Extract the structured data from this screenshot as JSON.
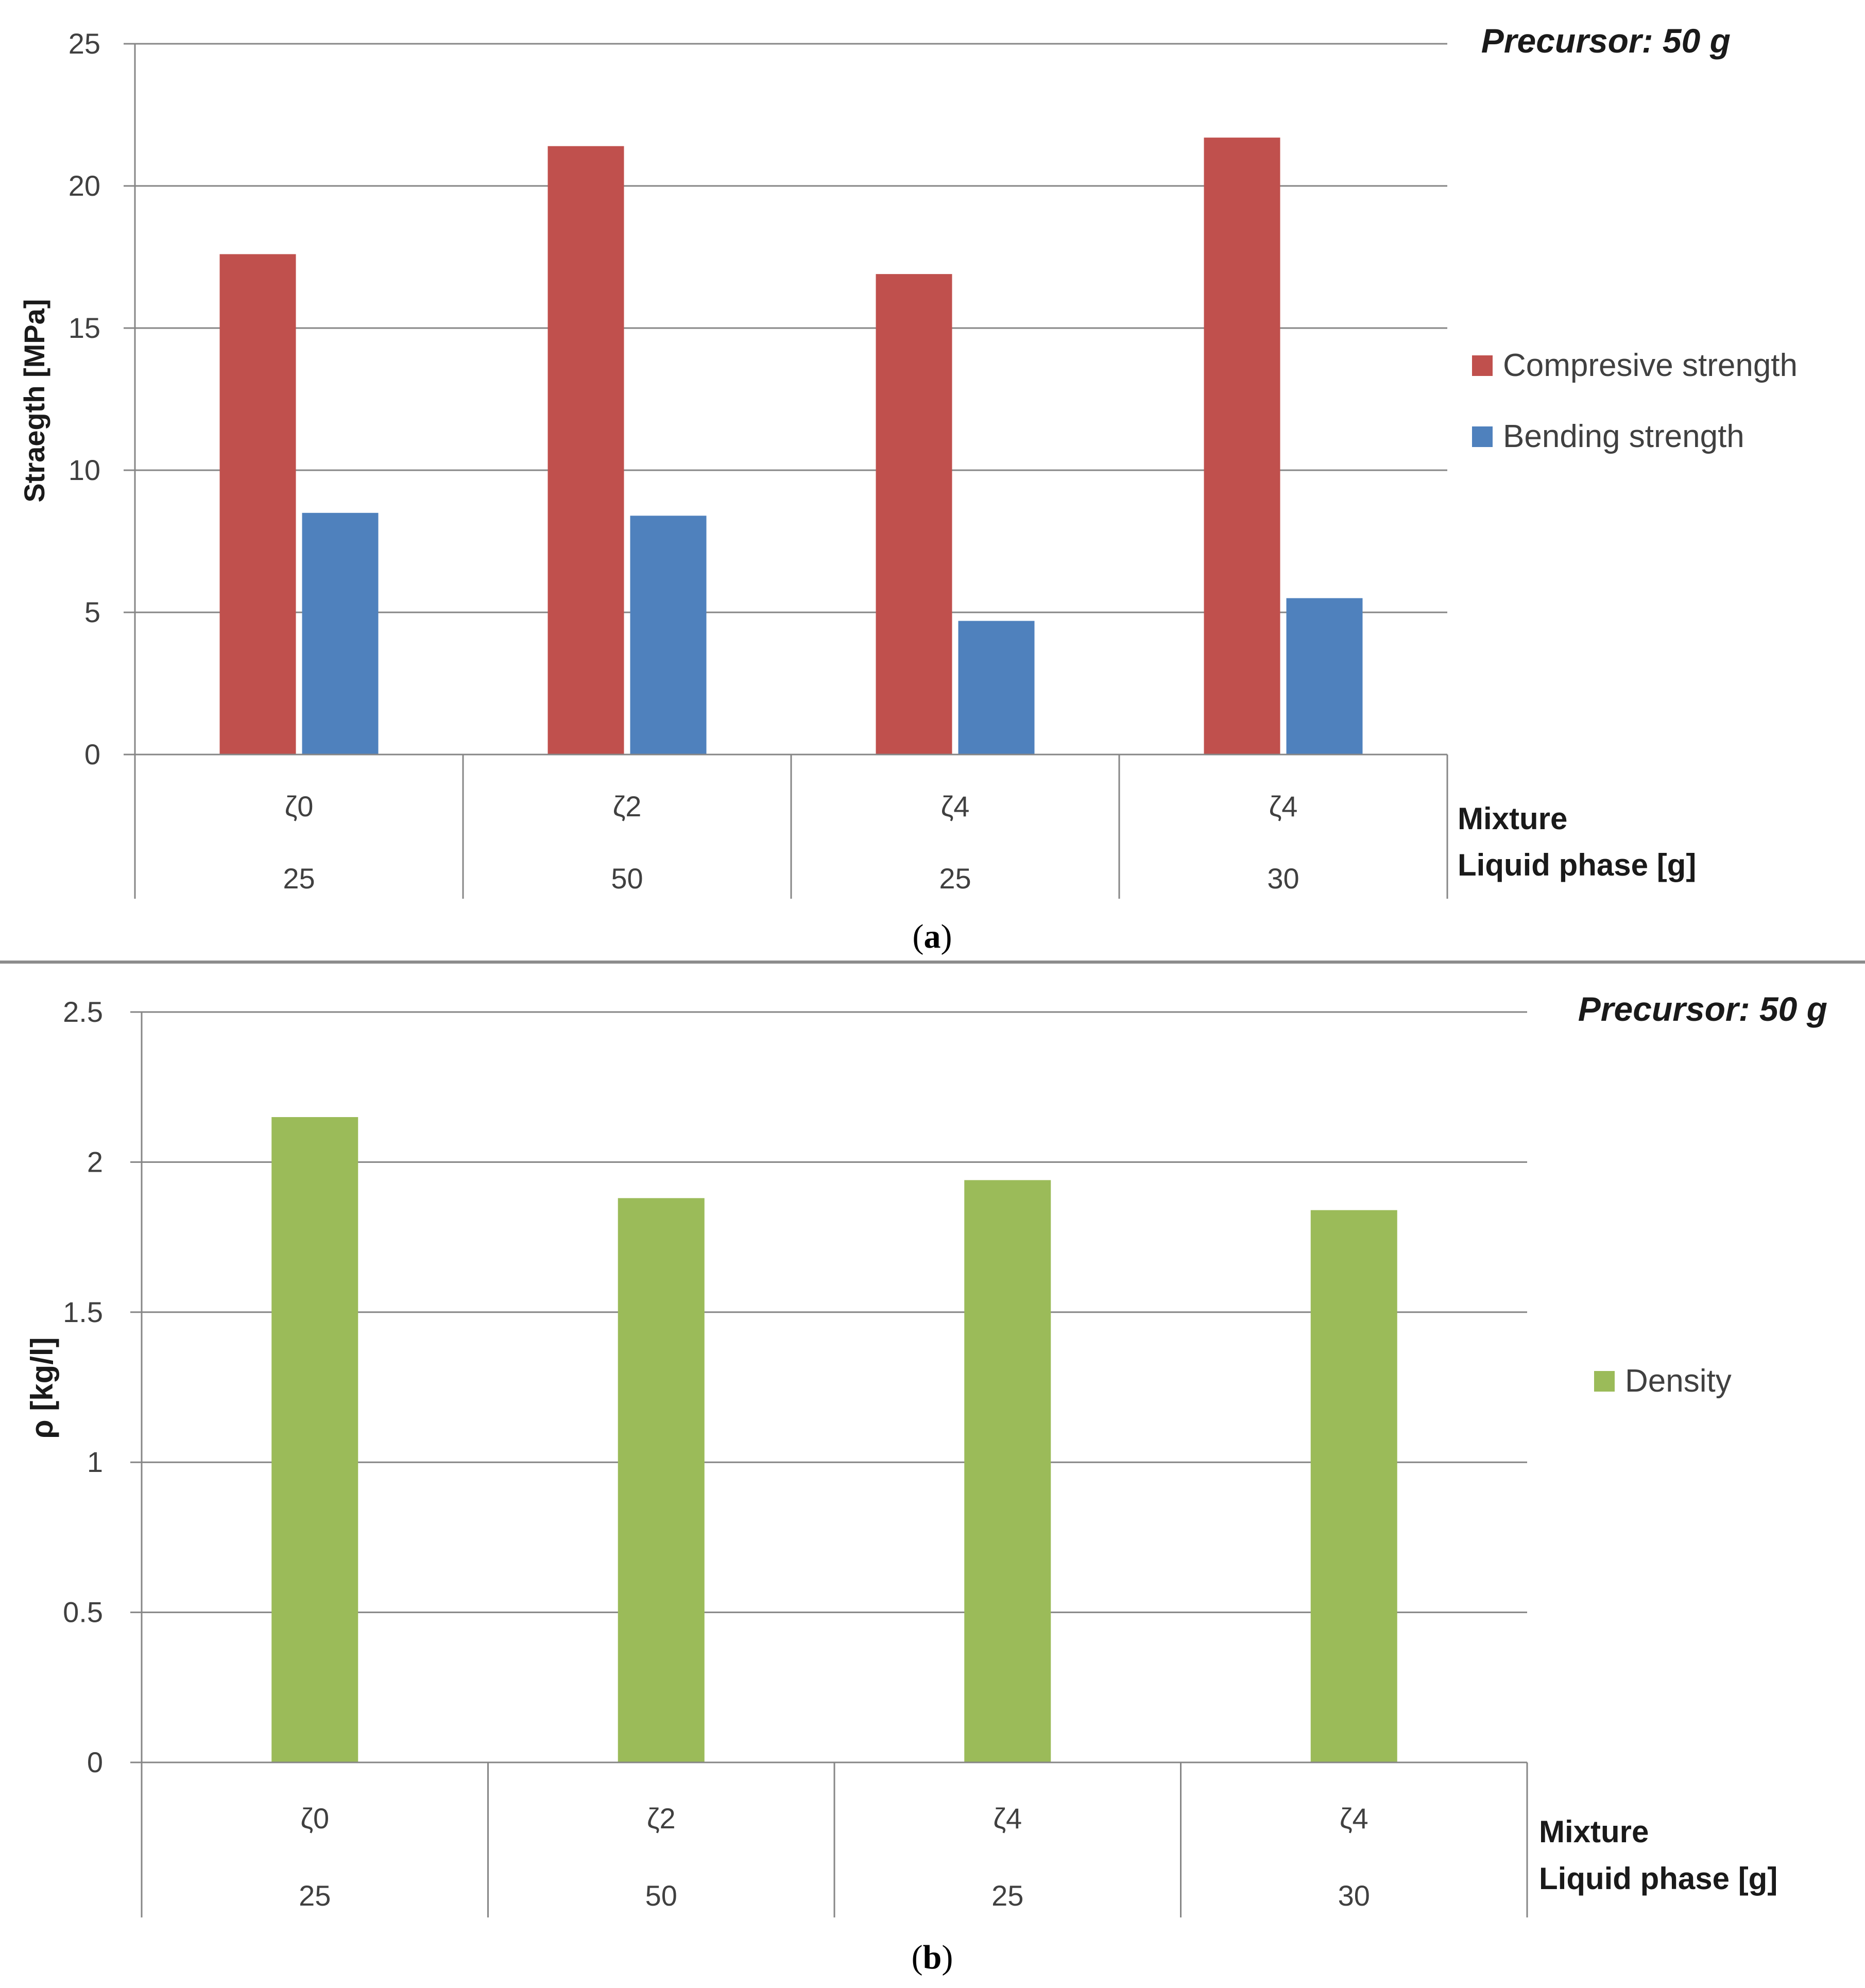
{
  "chart_data": [
    {
      "id": "a",
      "type": "bar",
      "title": "Precursor: 50 g",
      "ylabel": "Straegth [MPa]",
      "ylim": [
        0,
        25
      ],
      "yticks": [
        "0",
        "5",
        "10",
        "15",
        "20",
        "25"
      ],
      "grid": true,
      "categories": [
        "ζ0",
        "ζ2",
        "ζ4",
        "ζ4"
      ],
      "categories2": [
        "25",
        "50",
        "25",
        "30"
      ],
      "xlabel": "Mixture",
      "xlabel2": "Liquid phase [g]",
      "legend_position": "right",
      "series": [
        {
          "name": "Compresive strength",
          "color": "#c0504d",
          "values": [
            17.6,
            21.4,
            16.9,
            21.7
          ]
        },
        {
          "name": "Bending strength",
          "color": "#4f81bd",
          "values": [
            8.5,
            8.4,
            4.7,
            5.5
          ]
        }
      ],
      "caption": {
        "open": "(",
        "letter": "a",
        "close": ")"
      }
    },
    {
      "id": "b",
      "type": "bar",
      "title": "Precursor: 50 g",
      "ylabel": "ρ [kg/l]",
      "ylim": [
        0,
        2.5
      ],
      "yticks": [
        "0",
        "0.5",
        "1",
        "1.5",
        "2",
        "2.5"
      ],
      "grid": true,
      "categories": [
        "ζ0",
        "ζ2",
        "ζ4",
        "ζ4"
      ],
      "categories2": [
        "25",
        "50",
        "25",
        "30"
      ],
      "xlabel": "Mixture",
      "xlabel2": "Liquid phase [g]",
      "legend_position": "right",
      "series": [
        {
          "name": "Density",
          "color": "#9bbb59",
          "values": [
            2.15,
            1.88,
            1.94,
            1.84
          ]
        }
      ],
      "caption": {
        "open": "(",
        "letter": "b",
        "close": ")"
      }
    }
  ]
}
